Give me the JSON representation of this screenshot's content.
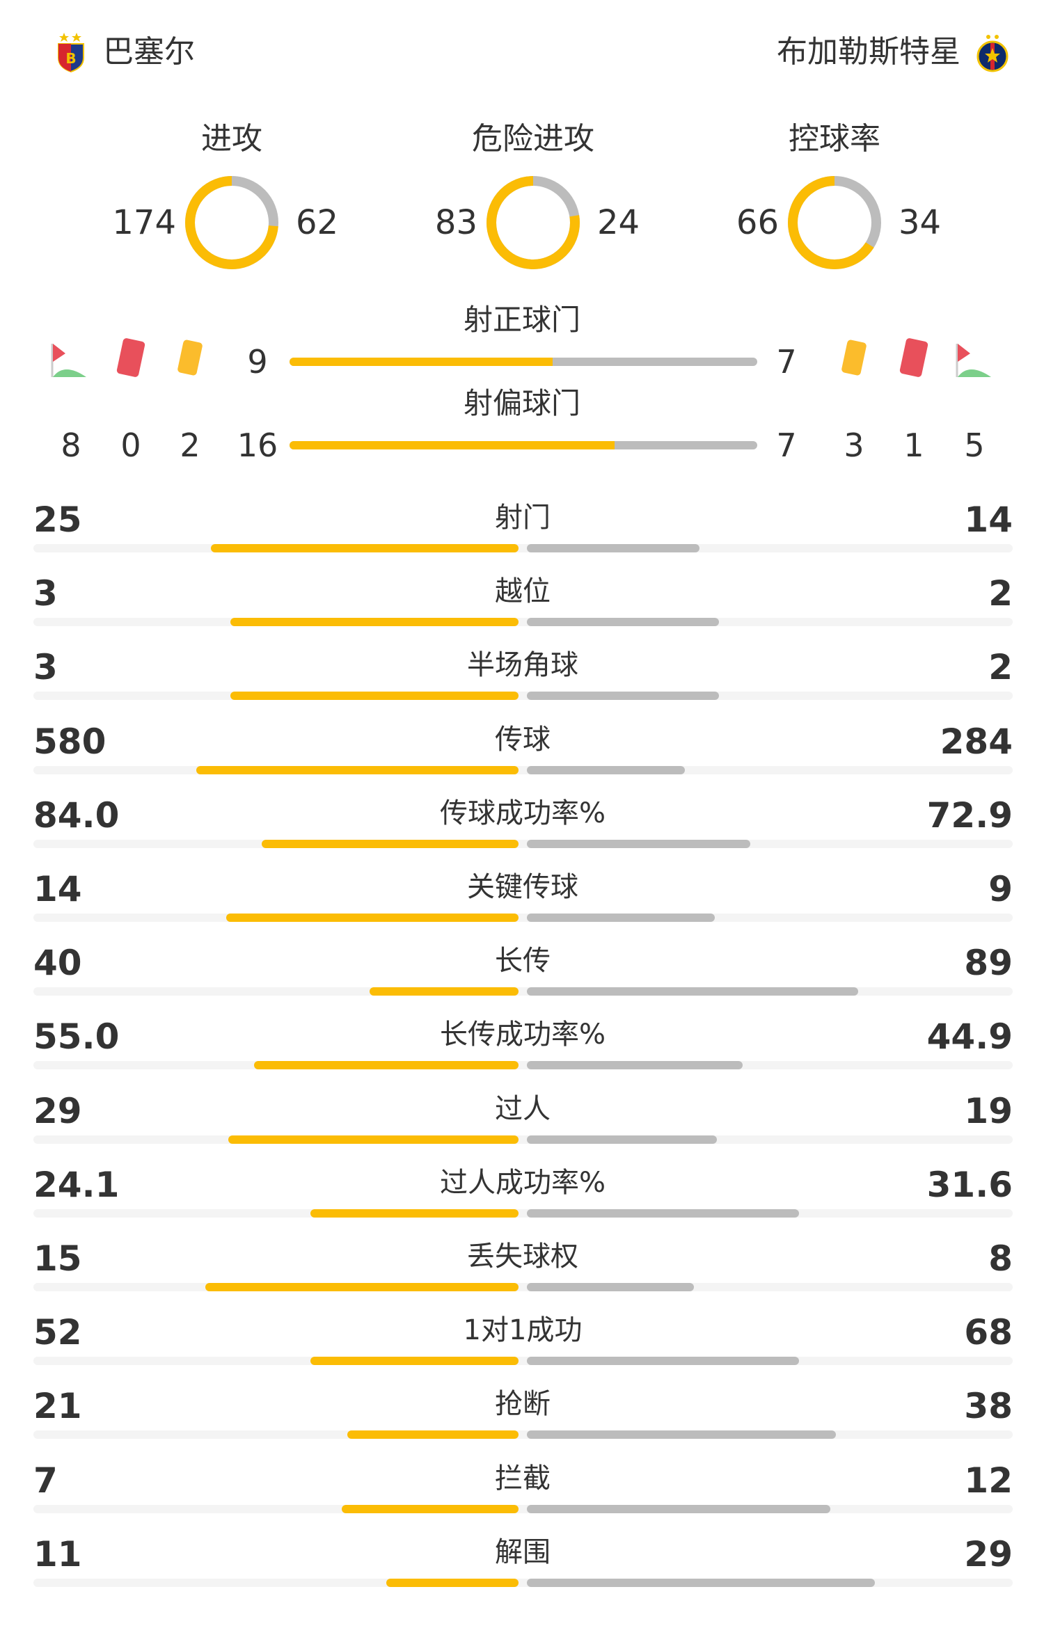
{
  "home": {
    "name": "巴塞尔",
    "crest": "fc-basel-crest-icon"
  },
  "away": {
    "name": "布加勒斯特星",
    "crest": "fcsb-crest-icon"
  },
  "colors": {
    "home": "#fbbc05",
    "away": "#bcbcbc",
    "track": "#f4f4f4"
  },
  "rings": [
    {
      "title": "进攻",
      "home": 174,
      "away": 62
    },
    {
      "title": "危险进攻",
      "home": 83,
      "away": 24
    },
    {
      "title": "控球率",
      "home": 66,
      "away": 34
    }
  ],
  "shots_on_target": {
    "label": "射正球门",
    "home": 9,
    "away": 7
  },
  "shots_off_target": {
    "label": "射偏球门",
    "home": 16,
    "away": 7
  },
  "discipline": {
    "home": {
      "corners": 8,
      "red_cards": 0,
      "yellow_cards": 2
    },
    "away": {
      "yellow_cards": 3,
      "red_cards": 1,
      "corners": 5
    }
  },
  "stats": [
    {
      "label": "射门",
      "home": "25",
      "away": "14"
    },
    {
      "label": "越位",
      "home": "3",
      "away": "2"
    },
    {
      "label": "半场角球",
      "home": "3",
      "away": "2"
    },
    {
      "label": "传球",
      "home": "580",
      "away": "284"
    },
    {
      "label": "传球成功率%",
      "home": "84.0",
      "away": "72.9"
    },
    {
      "label": "关键传球",
      "home": "14",
      "away": "9"
    },
    {
      "label": "长传",
      "home": "40",
      "away": "89"
    },
    {
      "label": "长传成功率%",
      "home": "55.0",
      "away": "44.9"
    },
    {
      "label": "过人",
      "home": "29",
      "away": "19"
    },
    {
      "label": "过人成功率%",
      "home": "24.1",
      "away": "31.6"
    },
    {
      "label": "丢失球权",
      "home": "15",
      "away": "8"
    },
    {
      "label": "1对1成功",
      "home": "52",
      "away": "68"
    },
    {
      "label": "抢断",
      "home": "21",
      "away": "38"
    },
    {
      "label": "拦截",
      "home": "7",
      "away": "12"
    },
    {
      "label": "解围",
      "home": "11",
      "away": "29"
    }
  ]
}
